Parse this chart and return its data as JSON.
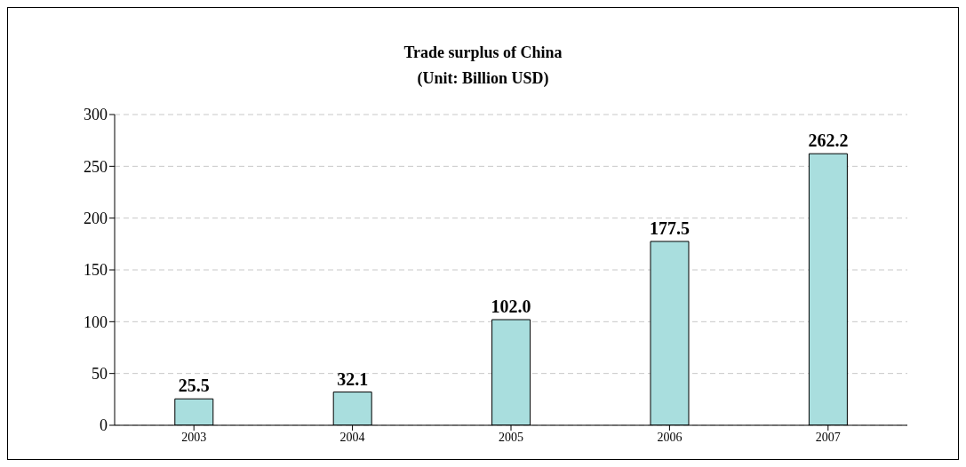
{
  "chart_data": {
    "type": "bar",
    "title": "Trade surplus of China",
    "subtitle": "(Unit: Billion USD)",
    "categories": [
      "2003",
      "2004",
      "2005",
      "2006",
      "2007"
    ],
    "values": [
      25.5,
      32.1,
      102.0,
      177.5,
      262.2
    ],
    "value_labels": [
      "25.5",
      "32.1",
      "102.0",
      "177.5",
      "262.2"
    ],
    "color": "#a9dede",
    "ylim": [
      0,
      300
    ],
    "yticks": [
      0,
      50,
      100,
      150,
      200,
      250,
      300
    ],
    "grid": "y"
  }
}
